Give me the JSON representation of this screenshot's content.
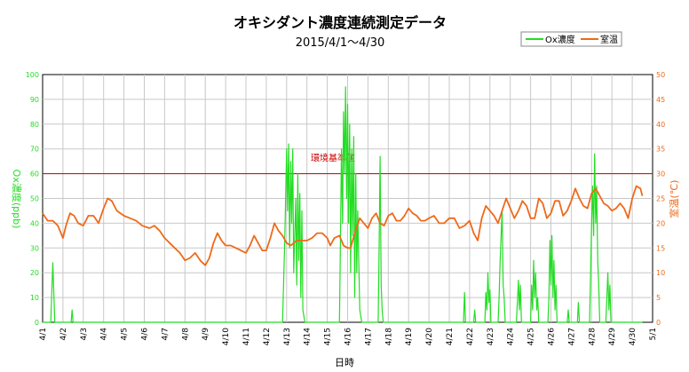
{
  "chart_data": {
    "type": "line",
    "title": "オキシダント濃度連続測定データ",
    "subtitle": "2015/4/1～4/30",
    "xlabel": "日時",
    "ylabel_left": "Ox濃度(ppb)",
    "ylabel_right": "室温(℃)",
    "ylim_left": [
      0,
      100
    ],
    "ylim_right": [
      0,
      50
    ],
    "yticks_left": [
      "0",
      "10",
      "20",
      "30",
      "40",
      "50",
      "60",
      "70",
      "80",
      "90",
      "100"
    ],
    "yticks_right": [
      "0",
      "5",
      "10",
      "15",
      "20",
      "25",
      "30",
      "35",
      "40",
      "45",
      "50"
    ],
    "x_range": [
      "4/1",
      "5/1"
    ],
    "x_ticks": [
      "4/1",
      "4/2",
      "4/3",
      "4/4",
      "4/5",
      "4/6",
      "4/7",
      "4/8",
      "4/9",
      "4/10",
      "4/11",
      "4/12",
      "4/13",
      "4/14",
      "4/15",
      "4/16",
      "4/17",
      "4/18",
      "4/19",
      "4/20",
      "4/21",
      "4/22",
      "4/23",
      "4/24",
      "4/25",
      "4/26",
      "4/27",
      "4/28",
      "4/29",
      "4/30",
      "5/1"
    ],
    "grid": true,
    "legend_position": "top-right",
    "annotation": {
      "label": "環境基準値",
      "axis": "left",
      "value": 60
    },
    "series": [
      {
        "name": "Ox濃度",
        "axis": "left",
        "color": "#22dd22",
        "points": [
          [
            0.0,
            0
          ],
          [
            0.4,
            0
          ],
          [
            0.45,
            12
          ],
          [
            0.5,
            24
          ],
          [
            0.55,
            12
          ],
          [
            0.6,
            0
          ],
          [
            1.4,
            0
          ],
          [
            1.45,
            5
          ],
          [
            1.5,
            0
          ],
          [
            11.8,
            0
          ],
          [
            11.9,
            30
          ],
          [
            11.95,
            50
          ],
          [
            12.0,
            70
          ],
          [
            12.05,
            45
          ],
          [
            12.1,
            72
          ],
          [
            12.15,
            30
          ],
          [
            12.2,
            65
          ],
          [
            12.25,
            40
          ],
          [
            12.3,
            70
          ],
          [
            12.35,
            20
          ],
          [
            12.45,
            50
          ],
          [
            12.5,
            15
          ],
          [
            12.55,
            60
          ],
          [
            12.6,
            25
          ],
          [
            12.65,
            52
          ],
          [
            12.7,
            10
          ],
          [
            12.75,
            45
          ],
          [
            12.8,
            5
          ],
          [
            12.9,
            0
          ],
          [
            14.6,
            0
          ],
          [
            14.65,
            35
          ],
          [
            14.7,
            70
          ],
          [
            14.75,
            40
          ],
          [
            14.8,
            85
          ],
          [
            14.85,
            60
          ],
          [
            14.9,
            95
          ],
          [
            14.95,
            50
          ],
          [
            15.0,
            88
          ],
          [
            15.05,
            40
          ],
          [
            15.1,
            80
          ],
          [
            15.15,
            20
          ],
          [
            15.2,
            70
          ],
          [
            15.25,
            35
          ],
          [
            15.3,
            75
          ],
          [
            15.35,
            10
          ],
          [
            15.4,
            60
          ],
          [
            15.45,
            20
          ],
          [
            15.5,
            45
          ],
          [
            15.6,
            5
          ],
          [
            15.7,
            0
          ],
          [
            16.5,
            0
          ],
          [
            16.55,
            30
          ],
          [
            16.6,
            67
          ],
          [
            16.65,
            15
          ],
          [
            16.7,
            5
          ],
          [
            16.75,
            0
          ],
          [
            20.7,
            0
          ],
          [
            20.75,
            12
          ],
          [
            20.8,
            0
          ],
          [
            21.2,
            0
          ],
          [
            21.25,
            5
          ],
          [
            21.3,
            0
          ],
          [
            21.75,
            0
          ],
          [
            21.8,
            12
          ],
          [
            21.85,
            5
          ],
          [
            21.9,
            20
          ],
          [
            21.95,
            8
          ],
          [
            22.0,
            13
          ],
          [
            22.05,
            0
          ],
          [
            22.4,
            0
          ],
          [
            22.45,
            10
          ],
          [
            22.5,
            25
          ],
          [
            22.55,
            35
          ],
          [
            22.6,
            45
          ],
          [
            22.65,
            15
          ],
          [
            22.7,
            10
          ],
          [
            22.75,
            0
          ],
          [
            23.3,
            0
          ],
          [
            23.35,
            8
          ],
          [
            23.4,
            17
          ],
          [
            23.45,
            5
          ],
          [
            23.5,
            15
          ],
          [
            23.55,
            0
          ],
          [
            24.0,
            0
          ],
          [
            24.05,
            15
          ],
          [
            24.1,
            5
          ],
          [
            24.15,
            25
          ],
          [
            24.2,
            10
          ],
          [
            24.25,
            20
          ],
          [
            24.3,
            5
          ],
          [
            24.35,
            10
          ],
          [
            24.4,
            0
          ],
          [
            24.85,
            0
          ],
          [
            24.9,
            10
          ],
          [
            24.95,
            33
          ],
          [
            25.0,
            15
          ],
          [
            25.05,
            35
          ],
          [
            25.1,
            10
          ],
          [
            25.15,
            25
          ],
          [
            25.2,
            5
          ],
          [
            25.25,
            15
          ],
          [
            25.3,
            0
          ],
          [
            25.8,
            0
          ],
          [
            25.85,
            5
          ],
          [
            25.9,
            0
          ],
          [
            26.3,
            0
          ],
          [
            26.35,
            8
          ],
          [
            26.4,
            0
          ],
          [
            26.9,
            0
          ],
          [
            26.95,
            20
          ],
          [
            27.0,
            40
          ],
          [
            27.05,
            55
          ],
          [
            27.1,
            35
          ],
          [
            27.15,
            68
          ],
          [
            27.2,
            40
          ],
          [
            27.25,
            55
          ],
          [
            27.3,
            25
          ],
          [
            27.35,
            15
          ],
          [
            27.4,
            0
          ],
          [
            27.7,
            0
          ],
          [
            27.75,
            10
          ],
          [
            27.8,
            20
          ],
          [
            27.85,
            5
          ],
          [
            27.9,
            15
          ],
          [
            27.95,
            0
          ],
          [
            29.5,
            0
          ]
        ]
      },
      {
        "name": "室温",
        "axis": "right",
        "color": "#ee6a1a",
        "points": [
          [
            0.0,
            22
          ],
          [
            0.25,
            20.5
          ],
          [
            0.5,
            20.5
          ],
          [
            0.75,
            19.5
          ],
          [
            1.0,
            17
          ],
          [
            1.15,
            19.5
          ],
          [
            1.35,
            22
          ],
          [
            1.55,
            21.5
          ],
          [
            1.75,
            20
          ],
          [
            2.0,
            19.5
          ],
          [
            2.25,
            21.5
          ],
          [
            2.5,
            21.5
          ],
          [
            2.75,
            20
          ],
          [
            3.0,
            23
          ],
          [
            3.2,
            25
          ],
          [
            3.4,
            24.5
          ],
          [
            3.65,
            22.5
          ],
          [
            4.0,
            21.5
          ],
          [
            4.3,
            21
          ],
          [
            4.6,
            20.5
          ],
          [
            4.9,
            19.5
          ],
          [
            5.25,
            19
          ],
          [
            5.5,
            19.5
          ],
          [
            5.75,
            18.5
          ],
          [
            6.0,
            17
          ],
          [
            6.25,
            16
          ],
          [
            6.5,
            15
          ],
          [
            6.75,
            14
          ],
          [
            7.0,
            12.5
          ],
          [
            7.25,
            13
          ],
          [
            7.5,
            14
          ],
          [
            7.75,
            12.5
          ],
          [
            8.0,
            11.5
          ],
          [
            8.2,
            13
          ],
          [
            8.4,
            16
          ],
          [
            8.6,
            18
          ],
          [
            8.8,
            16.5
          ],
          [
            9.0,
            15.5
          ],
          [
            9.25,
            15.5
          ],
          [
            9.5,
            15
          ],
          [
            9.75,
            14.5
          ],
          [
            10.0,
            14
          ],
          [
            10.2,
            15.5
          ],
          [
            10.4,
            17.5
          ],
          [
            10.6,
            16
          ],
          [
            10.8,
            14.5
          ],
          [
            11.0,
            14.5
          ],
          [
            11.2,
            17
          ],
          [
            11.4,
            20
          ],
          [
            11.6,
            18.5
          ],
          [
            11.8,
            17.5
          ],
          [
            12.0,
            16
          ],
          [
            12.2,
            15.5
          ],
          [
            12.5,
            16.5
          ],
          [
            12.75,
            16.5
          ],
          [
            13.0,
            16.5
          ],
          [
            13.25,
            17
          ],
          [
            13.5,
            18
          ],
          [
            13.75,
            18
          ],
          [
            14.0,
            17
          ],
          [
            14.15,
            15.5
          ],
          [
            14.35,
            17
          ],
          [
            14.6,
            17.5
          ],
          [
            14.8,
            15.5
          ],
          [
            15.0,
            15
          ],
          [
            15.15,
            15
          ],
          [
            15.35,
            18
          ],
          [
            15.6,
            21
          ],
          [
            15.8,
            20
          ],
          [
            16.0,
            19
          ],
          [
            16.2,
            21
          ],
          [
            16.4,
            22
          ],
          [
            16.6,
            20
          ],
          [
            16.8,
            19.5
          ],
          [
            17.0,
            21.5
          ],
          [
            17.2,
            22
          ],
          [
            17.4,
            20.5
          ],
          [
            17.6,
            20.5
          ],
          [
            17.8,
            21.5
          ],
          [
            18.0,
            23
          ],
          [
            18.2,
            22
          ],
          [
            18.4,
            21.5
          ],
          [
            18.6,
            20.5
          ],
          [
            18.8,
            20.5
          ],
          [
            19.0,
            21
          ],
          [
            19.25,
            21.5
          ],
          [
            19.5,
            20
          ],
          [
            19.75,
            20
          ],
          [
            20.0,
            21
          ],
          [
            20.25,
            21
          ],
          [
            20.5,
            19
          ],
          [
            20.75,
            19.5
          ],
          [
            21.0,
            20.5
          ],
          [
            21.2,
            18
          ],
          [
            21.4,
            16.5
          ],
          [
            21.6,
            21
          ],
          [
            21.8,
            23.5
          ],
          [
            22.0,
            22.5
          ],
          [
            22.2,
            21.5
          ],
          [
            22.4,
            20
          ],
          [
            22.6,
            22.5
          ],
          [
            22.8,
            25
          ],
          [
            23.0,
            23
          ],
          [
            23.2,
            21
          ],
          [
            23.4,
            22.5
          ],
          [
            23.6,
            24.5
          ],
          [
            23.8,
            23.5
          ],
          [
            24.0,
            21
          ],
          [
            24.2,
            21
          ],
          [
            24.4,
            25
          ],
          [
            24.6,
            24
          ],
          [
            24.8,
            21
          ],
          [
            25.0,
            22
          ],
          [
            25.2,
            24.5
          ],
          [
            25.4,
            24.5
          ],
          [
            25.6,
            21.5
          ],
          [
            25.8,
            22.5
          ],
          [
            26.0,
            24.5
          ],
          [
            26.2,
            27
          ],
          [
            26.4,
            25
          ],
          [
            26.6,
            23.5
          ],
          [
            26.8,
            23
          ],
          [
            27.0,
            26
          ],
          [
            27.2,
            27
          ],
          [
            27.4,
            25.5
          ],
          [
            27.6,
            24
          ],
          [
            27.8,
            23.5
          ],
          [
            28.0,
            22.5
          ],
          [
            28.2,
            23
          ],
          [
            28.4,
            24
          ],
          [
            28.6,
            23
          ],
          [
            28.8,
            21
          ],
          [
            29.0,
            25
          ],
          [
            29.2,
            27.5
          ],
          [
            29.4,
            27
          ],
          [
            29.5,
            25.5
          ]
        ]
      }
    ]
  }
}
